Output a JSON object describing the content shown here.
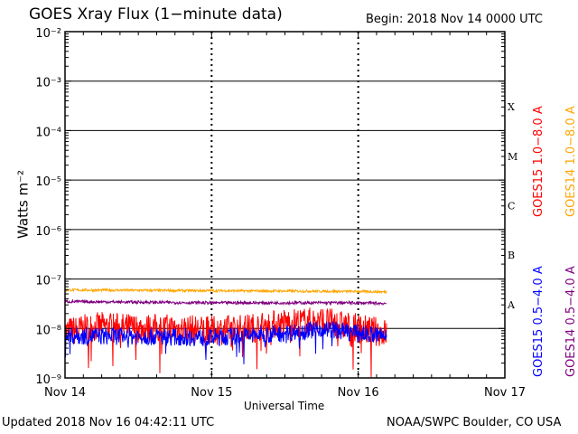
{
  "title": "GOES Xray Flux (1−minute data)",
  "begin_label": "Begin:  2018 Nov 14 0000 UTC",
  "updated": "Updated 2018 Nov 16 04:42:11 UTC",
  "credit": "NOAA/SWPC Boulder, CO USA",
  "chart_data": {
    "type": "line",
    "xlabel": "Universal Time",
    "ylabel": "Watts m⁻²",
    "x_ticks": [
      "Nov 14",
      "Nov 15",
      "Nov 16",
      "Nov 17"
    ],
    "xlim": [
      "2018-11-14T00:00",
      "2018-11-17T00:00"
    ],
    "yscale": "log",
    "ylim": [
      1e-09,
      0.01
    ],
    "y_ticks": [
      "10⁻⁹",
      "10⁻⁸",
      "10⁻⁷",
      "10⁻⁶",
      "10⁻⁵",
      "10⁻⁴",
      "10⁻³",
      "10⁻²"
    ],
    "grid": true,
    "flare_classes": [
      {
        "label": "A",
        "from": 1e-08,
        "to": 1e-07
      },
      {
        "label": "B",
        "from": 1e-07,
        "to": 1e-06
      },
      {
        "label": "C",
        "from": 1e-06,
        "to": 1e-05
      },
      {
        "label": "M",
        "from": 1e-05,
        "to": 0.0001
      },
      {
        "label": "X",
        "from": 0.0001,
        "to": 0.001
      }
    ],
    "series": [
      {
        "name": "GOES15 1.0−8.0 A",
        "color": "#ff0000",
        "x": [
          "2018-11-14T00:00",
          "2018-11-14T06:00",
          "2018-11-14T12:00",
          "2018-11-14T18:00",
          "2018-11-15T00:00",
          "2018-11-15T06:00",
          "2018-11-15T12:00",
          "2018-11-15T18:00",
          "2018-11-16T00:00",
          "2018-11-16T04:42"
        ],
        "y": [
          8.5e-09,
          1.1e-08,
          1e-08,
          1e-08,
          9e-09,
          1e-08,
          1.3e-08,
          1.4e-08,
          1e-08,
          8e-09
        ]
      },
      {
        "name": "GOES14 1.0−8.0 A",
        "color": "#ffa500",
        "x": [
          "2018-11-14T00:00",
          "2018-11-14T12:00",
          "2018-11-15T00:00",
          "2018-11-15T12:00",
          "2018-11-16T00:00",
          "2018-11-16T04:42"
        ],
        "y": [
          6e-08,
          5.9e-08,
          5.8e-08,
          5.7e-08,
          5.6e-08,
          5.5e-08
        ]
      },
      {
        "name": "GOES15 0.5−4.0 A",
        "color": "#0000ff",
        "x": [
          "2018-11-14T00:00",
          "2018-11-14T12:00",
          "2018-11-15T00:00",
          "2018-11-15T12:00",
          "2018-11-15T18:00",
          "2018-11-16T00:00",
          "2018-11-16T04:42"
        ],
        "y": [
          7e-09,
          7e-09,
          6.5e-09,
          8e-09,
          1e-08,
          8e-09,
          7e-09
        ]
      },
      {
        "name": "GOES14 0.5−4.0 A",
        "color": "#800080",
        "x": [
          "2018-11-14T00:00",
          "2018-11-14T12:00",
          "2018-11-15T00:00",
          "2018-11-15T12:00",
          "2018-11-16T00:00",
          "2018-11-16T04:42"
        ],
        "y": [
          3.5e-08,
          3.4e-08,
          3.3e-08,
          3.3e-08,
          3.3e-08,
          3.2e-08
        ]
      }
    ]
  }
}
